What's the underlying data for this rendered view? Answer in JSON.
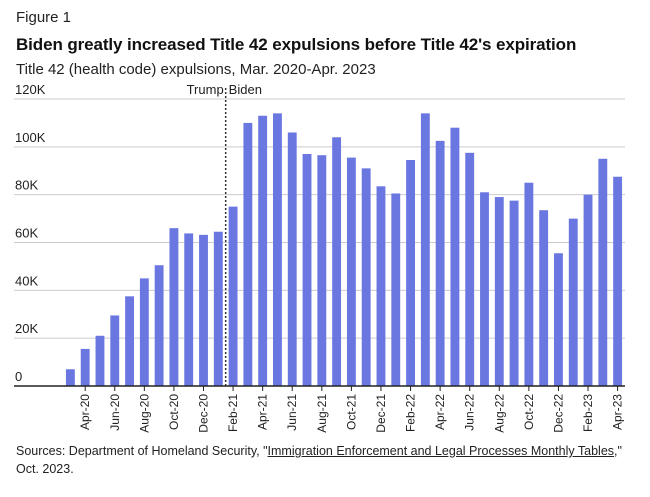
{
  "figure_label": "Figure 1",
  "source": {
    "prefix": "Sources: Department of Homeland Security, \"",
    "link_text": "Immigration Enforcement and Legal Processes Monthly Tables",
    "suffix": ",\" Oct. 2023."
  },
  "colors": {
    "bar": "#6b77e0",
    "grid": "#cccccc",
    "axis": "#222222",
    "divider": "#333333"
  },
  "chart_data": {
    "type": "bar",
    "title": "Biden greatly increased Title 42 expulsions before Title 42's expiration",
    "subtitle": "Title 42 (health code) expulsions, Mar. 2020-Apr. 2023",
    "xlabel": "",
    "ylabel": "",
    "ylim": [
      0,
      120000
    ],
    "y_ticks": [
      {
        "value": 0,
        "label": "0"
      },
      {
        "value": 20000,
        "label": "20K"
      },
      {
        "value": 40000,
        "label": "40K"
      },
      {
        "value": 60000,
        "label": "60K"
      },
      {
        "value": 80000,
        "label": "80K"
      },
      {
        "value": 100000,
        "label": "100K"
      },
      {
        "value": 120000,
        "label": "120K"
      }
    ],
    "grid": true,
    "categories": [
      "Mar-20",
      "Apr-20",
      "May-20",
      "Jun-20",
      "Jul-20",
      "Aug-20",
      "Sep-20",
      "Oct-20",
      "Nov-20",
      "Dec-20",
      "Jan-21",
      "Feb-21",
      "Mar-21",
      "Apr-21",
      "May-21",
      "Jun-21",
      "Jul-21",
      "Aug-21",
      "Sep-21",
      "Oct-21",
      "Nov-21",
      "Dec-21",
      "Jan-22",
      "Feb-22",
      "Mar-22",
      "Apr-22",
      "May-22",
      "Jun-22",
      "Jul-22",
      "Aug-22",
      "Sep-22",
      "Oct-22",
      "Nov-22",
      "Dec-22",
      "Jan-23",
      "Feb-23",
      "Mar-23",
      "Apr-23"
    ],
    "values": [
      7000,
      15500,
      21000,
      29500,
      37500,
      45000,
      50500,
      66000,
      63800,
      63200,
      64500,
      75000,
      110000,
      113000,
      114000,
      106000,
      97000,
      96500,
      104000,
      95500,
      91000,
      83500,
      80500,
      94500,
      114000,
      102500,
      108000,
      97500,
      81000,
      79000,
      77500,
      85000,
      73500,
      55500,
      70000,
      80000,
      95000,
      87500
    ],
    "x_tick_labels": [
      "Apr-20",
      "Jun-20",
      "Aug-20",
      "Oct-20",
      "Dec-20",
      "Feb-21",
      "Apr-21",
      "Jun-21",
      "Aug-21",
      "Oct-21",
      "Dec-21",
      "Feb-22",
      "Apr-22",
      "Jun-22",
      "Aug-22",
      "Oct-22",
      "Dec-22",
      "Feb-23",
      "Apr-23"
    ],
    "divider": {
      "after_category": "Jan-21",
      "left_label": "Trump",
      "right_label": "Biden"
    }
  }
}
